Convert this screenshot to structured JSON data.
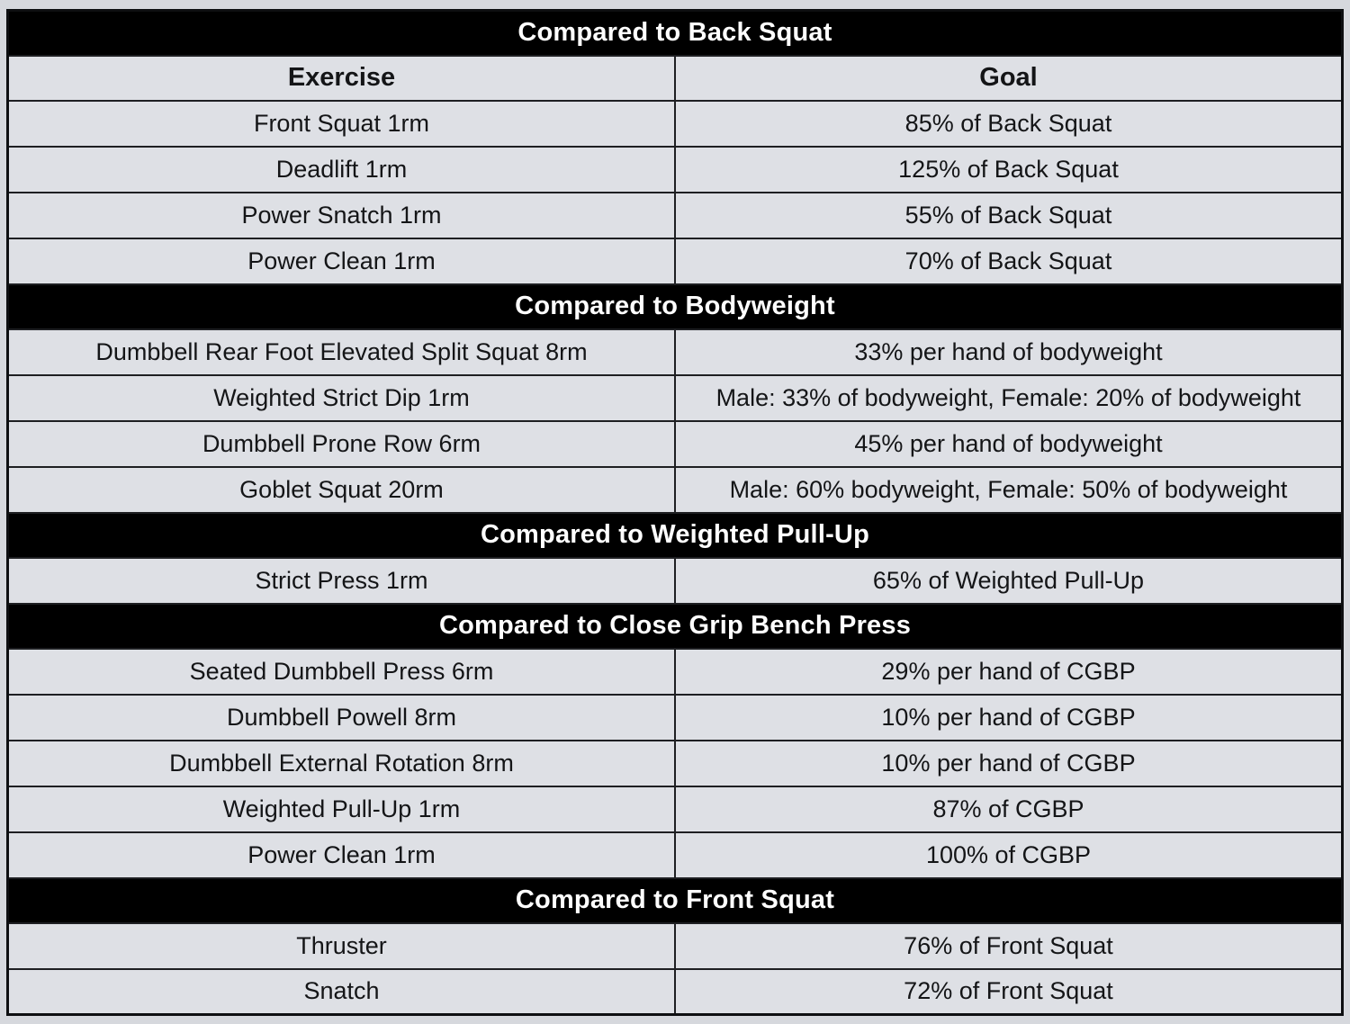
{
  "colors": {
    "page_background": "#d6d8dd",
    "row_background": "#dee0e5",
    "section_band_background": "#000000",
    "section_band_text": "#ffffff",
    "row_text": "#141517",
    "border": "#1e1f22"
  },
  "table": {
    "columns": [
      "Exercise",
      "Goal"
    ],
    "sections": [
      {
        "title": "Compared to Back Squat",
        "column_headers": [
          "Exercise",
          "Goal"
        ],
        "rows": [
          {
            "exercise": "Front Squat 1rm",
            "goal": "85% of Back Squat"
          },
          {
            "exercise": "Deadlift 1rm",
            "goal": "125% of Back Squat"
          },
          {
            "exercise": "Power Snatch 1rm",
            "goal": "55% of Back Squat"
          },
          {
            "exercise": "Power Clean 1rm",
            "goal": "70% of Back Squat"
          }
        ]
      },
      {
        "title": "Compared to Bodyweight",
        "rows": [
          {
            "exercise": "Dumbbell Rear Foot Elevated Split Squat 8rm",
            "goal": "33% per hand of bodyweight"
          },
          {
            "exercise": "Weighted Strict Dip 1rm",
            "goal": "Male: 33% of bodyweight, Female: 20% of bodyweight"
          },
          {
            "exercise": "Dumbbell Prone Row 6rm",
            "goal": "45% per hand of bodyweight"
          },
          {
            "exercise": "Goblet Squat 20rm",
            "goal": "Male: 60% bodyweight, Female: 50% of bodyweight"
          }
        ]
      },
      {
        "title": "Compared to Weighted Pull-Up",
        "rows": [
          {
            "exercise": "Strict Press 1rm",
            "goal": "65% of Weighted Pull-Up"
          }
        ]
      },
      {
        "title": "Compared to Close Grip Bench Press",
        "rows": [
          {
            "exercise": "Seated Dumbbell Press 6rm",
            "goal": "29% per hand of CGBP"
          },
          {
            "exercise": "Dumbbell Powell 8rm",
            "goal": "10% per hand of CGBP"
          },
          {
            "exercise": "Dumbbell External Rotation 8rm",
            "goal": "10% per hand of CGBP"
          },
          {
            "exercise": "Weighted Pull-Up 1rm",
            "goal": "87% of CGBP"
          },
          {
            "exercise": "Power Clean 1rm",
            "goal": "100% of CGBP"
          }
        ]
      },
      {
        "title": "Compared to Front Squat",
        "rows": [
          {
            "exercise": "Thruster",
            "goal": "76% of Front Squat"
          },
          {
            "exercise": "Snatch",
            "goal": "72% of Front Squat"
          }
        ]
      }
    ]
  }
}
